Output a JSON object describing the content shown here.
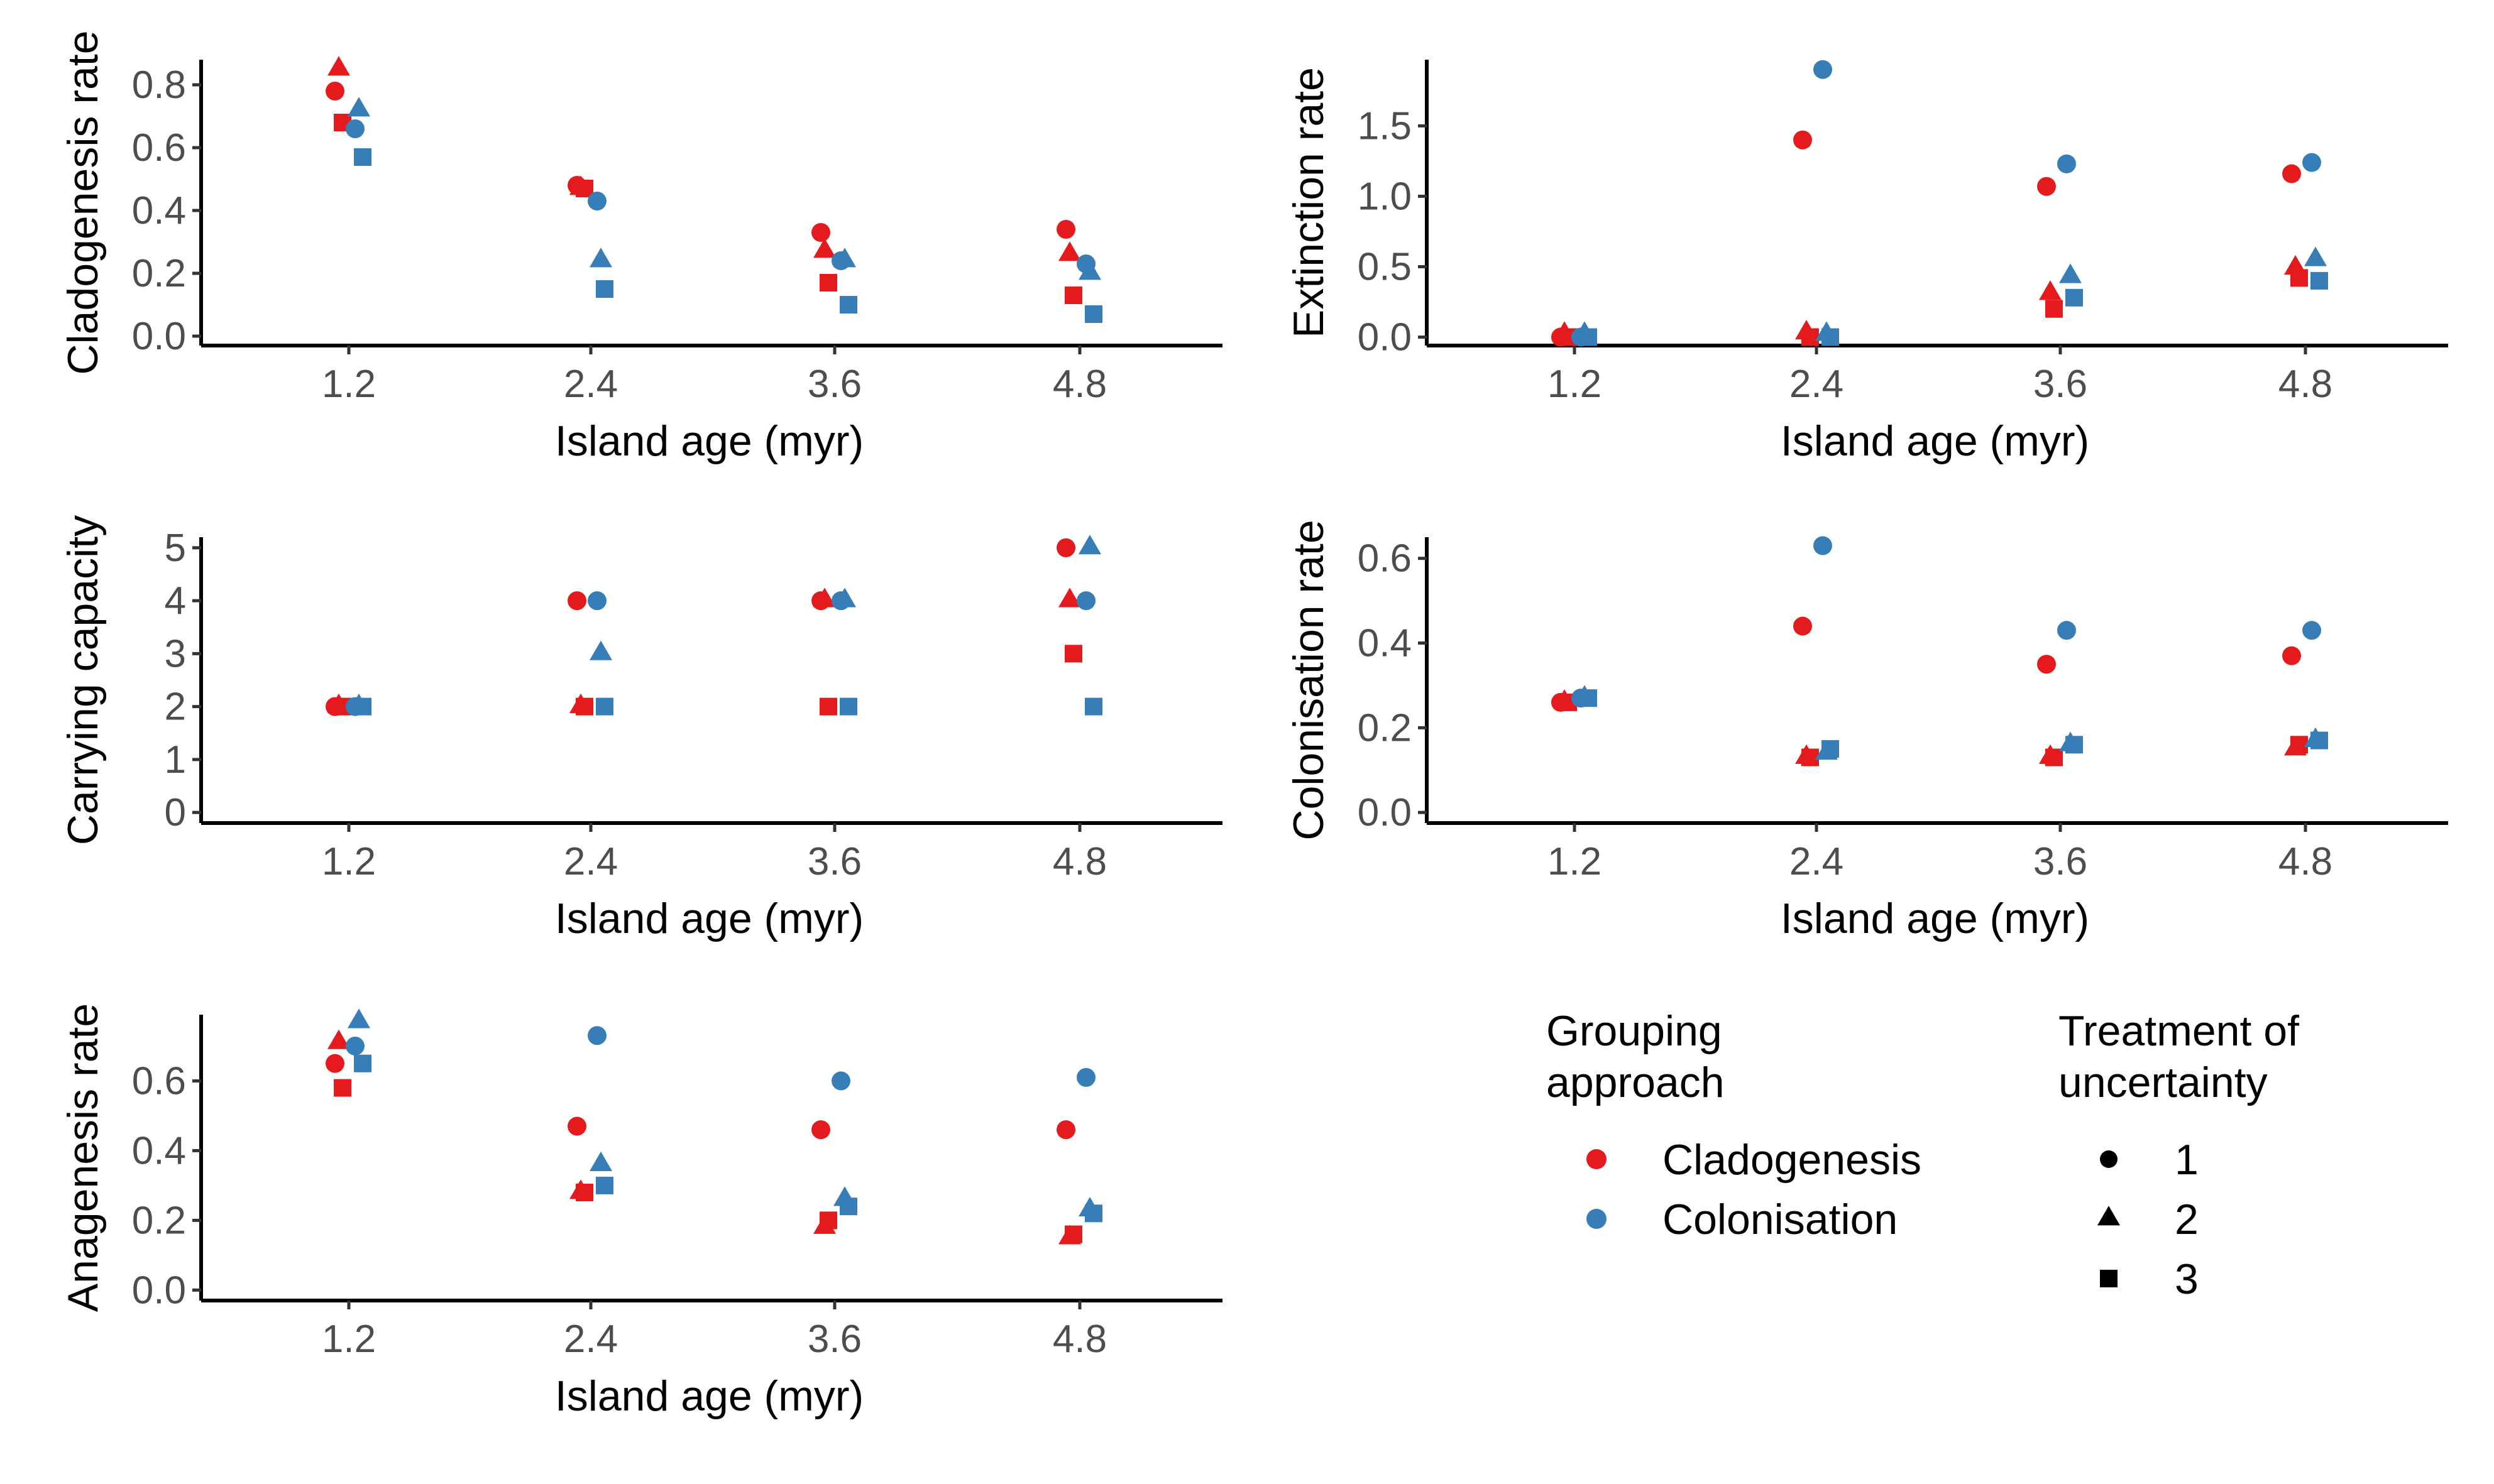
{
  "colors": {
    "cladogenesis": "#E41A1C",
    "colonisation": "#377EB8"
  },
  "legend": {
    "grouping_title": [
      "Grouping",
      "approach"
    ],
    "grouping_items": [
      "Cladogenesis",
      "Colonisation"
    ],
    "uncertainty_title": [
      "Treatment of",
      "uncertainty"
    ],
    "uncertainty_items": [
      "1",
      "2",
      "3"
    ]
  },
  "chart_data": [
    {
      "type": "scatter",
      "xlabel": "Island age (myr)",
      "ylabel": "Cladogenesis rate",
      "x_ticks": [
        "1.2",
        "2.4",
        "3.6",
        "4.8"
      ],
      "y_ticks": [
        "0.0",
        "0.2",
        "0.4",
        "0.6",
        "0.8"
      ],
      "ylim": [
        -0.03,
        0.88
      ],
      "series": [
        {
          "name": "Cladogenesis",
          "values": {
            "1": [
              0.78,
              0.48,
              0.33,
              0.34
            ],
            "2": [
              0.85,
              0.47,
              0.27,
              0.26
            ],
            "3": [
              0.68,
              0.47,
              0.17,
              0.13
            ]
          }
        },
        {
          "name": "Colonisation",
          "values": {
            "1": [
              0.66,
              0.43,
              0.24,
              0.23
            ],
            "2": [
              0.72,
              0.24,
              0.24,
              0.2
            ],
            "3": [
              0.57,
              0.15,
              0.1,
              0.07
            ]
          }
        }
      ]
    },
    {
      "type": "scatter",
      "xlabel": "Island age (myr)",
      "ylabel": "Extinction rate",
      "x_ticks": [
        "1.2",
        "2.4",
        "3.6",
        "4.8"
      ],
      "y_ticks": [
        "0.0",
        "0.5",
        "1.0",
        "1.5"
      ],
      "ylim": [
        -0.06,
        1.97
      ],
      "series": [
        {
          "name": "Cladogenesis",
          "values": {
            "1": [
              0.0,
              1.4,
              1.07,
              1.16
            ],
            "2": [
              0.02,
              0.03,
              0.31,
              0.49
            ],
            "3": [
              0.0,
              0.0,
              0.2,
              0.42
            ]
          }
        },
        {
          "name": "Colonisation",
          "values": {
            "1": [
              0.0,
              1.9,
              1.23,
              1.24
            ],
            "2": [
              0.02,
              0.02,
              0.43,
              0.55
            ],
            "3": [
              0.0,
              0.0,
              0.28,
              0.4
            ]
          }
        }
      ]
    },
    {
      "type": "scatter",
      "xlabel": "Island age (myr)",
      "ylabel": "Carrying capacity",
      "x_ticks": [
        "1.2",
        "2.4",
        "3.6",
        "4.8"
      ],
      "y_ticks": [
        "0",
        "1",
        "2",
        "3",
        "4",
        "5"
      ],
      "ylim": [
        -0.2,
        5.2
      ],
      "series": [
        {
          "name": "Cladogenesis",
          "values": {
            "1": [
              2,
              4,
              4,
              5
            ],
            "2": [
              2,
              2,
              4,
              4
            ],
            "3": [
              2,
              2,
              2,
              3
            ]
          }
        },
        {
          "name": "Colonisation",
          "values": {
            "1": [
              2,
              4,
              4,
              4
            ],
            "2": [
              2,
              3,
              4,
              5
            ],
            "3": [
              2,
              2,
              2,
              2
            ]
          }
        }
      ]
    },
    {
      "type": "scatter",
      "xlabel": "Island age (myr)",
      "ylabel": "Colonisation rate",
      "x_ticks": [
        "1.2",
        "2.4",
        "3.6",
        "4.8"
      ],
      "y_ticks": [
        "0.0",
        "0.2",
        "0.4",
        "0.6"
      ],
      "ylim": [
        -0.025,
        0.65
      ],
      "series": [
        {
          "name": "Cladogenesis",
          "values": {
            "1": [
              0.26,
              0.44,
              0.35,
              0.37
            ],
            "2": [
              0.26,
              0.13,
              0.13,
              0.15
            ],
            "3": [
              0.26,
              0.13,
              0.13,
              0.16
            ]
          }
        },
        {
          "name": "Colonisation",
          "values": {
            "1": [
              0.27,
              0.63,
              0.43,
              0.43
            ],
            "2": [
              0.27,
              0.14,
              0.16,
              0.17
            ],
            "3": [
              0.27,
              0.15,
              0.16,
              0.17
            ]
          }
        }
      ]
    },
    {
      "type": "scatter",
      "xlabel": "Island age (myr)",
      "ylabel": "Anagenesis rate",
      "x_ticks": [
        "1.2",
        "2.4",
        "3.6",
        "4.8"
      ],
      "y_ticks": [
        "0.0",
        "0.2",
        "0.4",
        "0.6"
      ],
      "ylim": [
        -0.03,
        0.79
      ],
      "series": [
        {
          "name": "Cladogenesis",
          "values": {
            "1": [
              0.65,
              0.47,
              0.46,
              0.46
            ],
            "2": [
              0.71,
              0.28,
              0.18,
              0.15
            ],
            "3": [
              0.58,
              0.28,
              0.2,
              0.16
            ]
          }
        },
        {
          "name": "Colonisation",
          "values": {
            "1": [
              0.7,
              0.73,
              0.6,
              0.61
            ],
            "2": [
              0.77,
              0.36,
              0.26,
              0.23
            ],
            "3": [
              0.65,
              0.3,
              0.24,
              0.22
            ]
          }
        }
      ]
    }
  ]
}
